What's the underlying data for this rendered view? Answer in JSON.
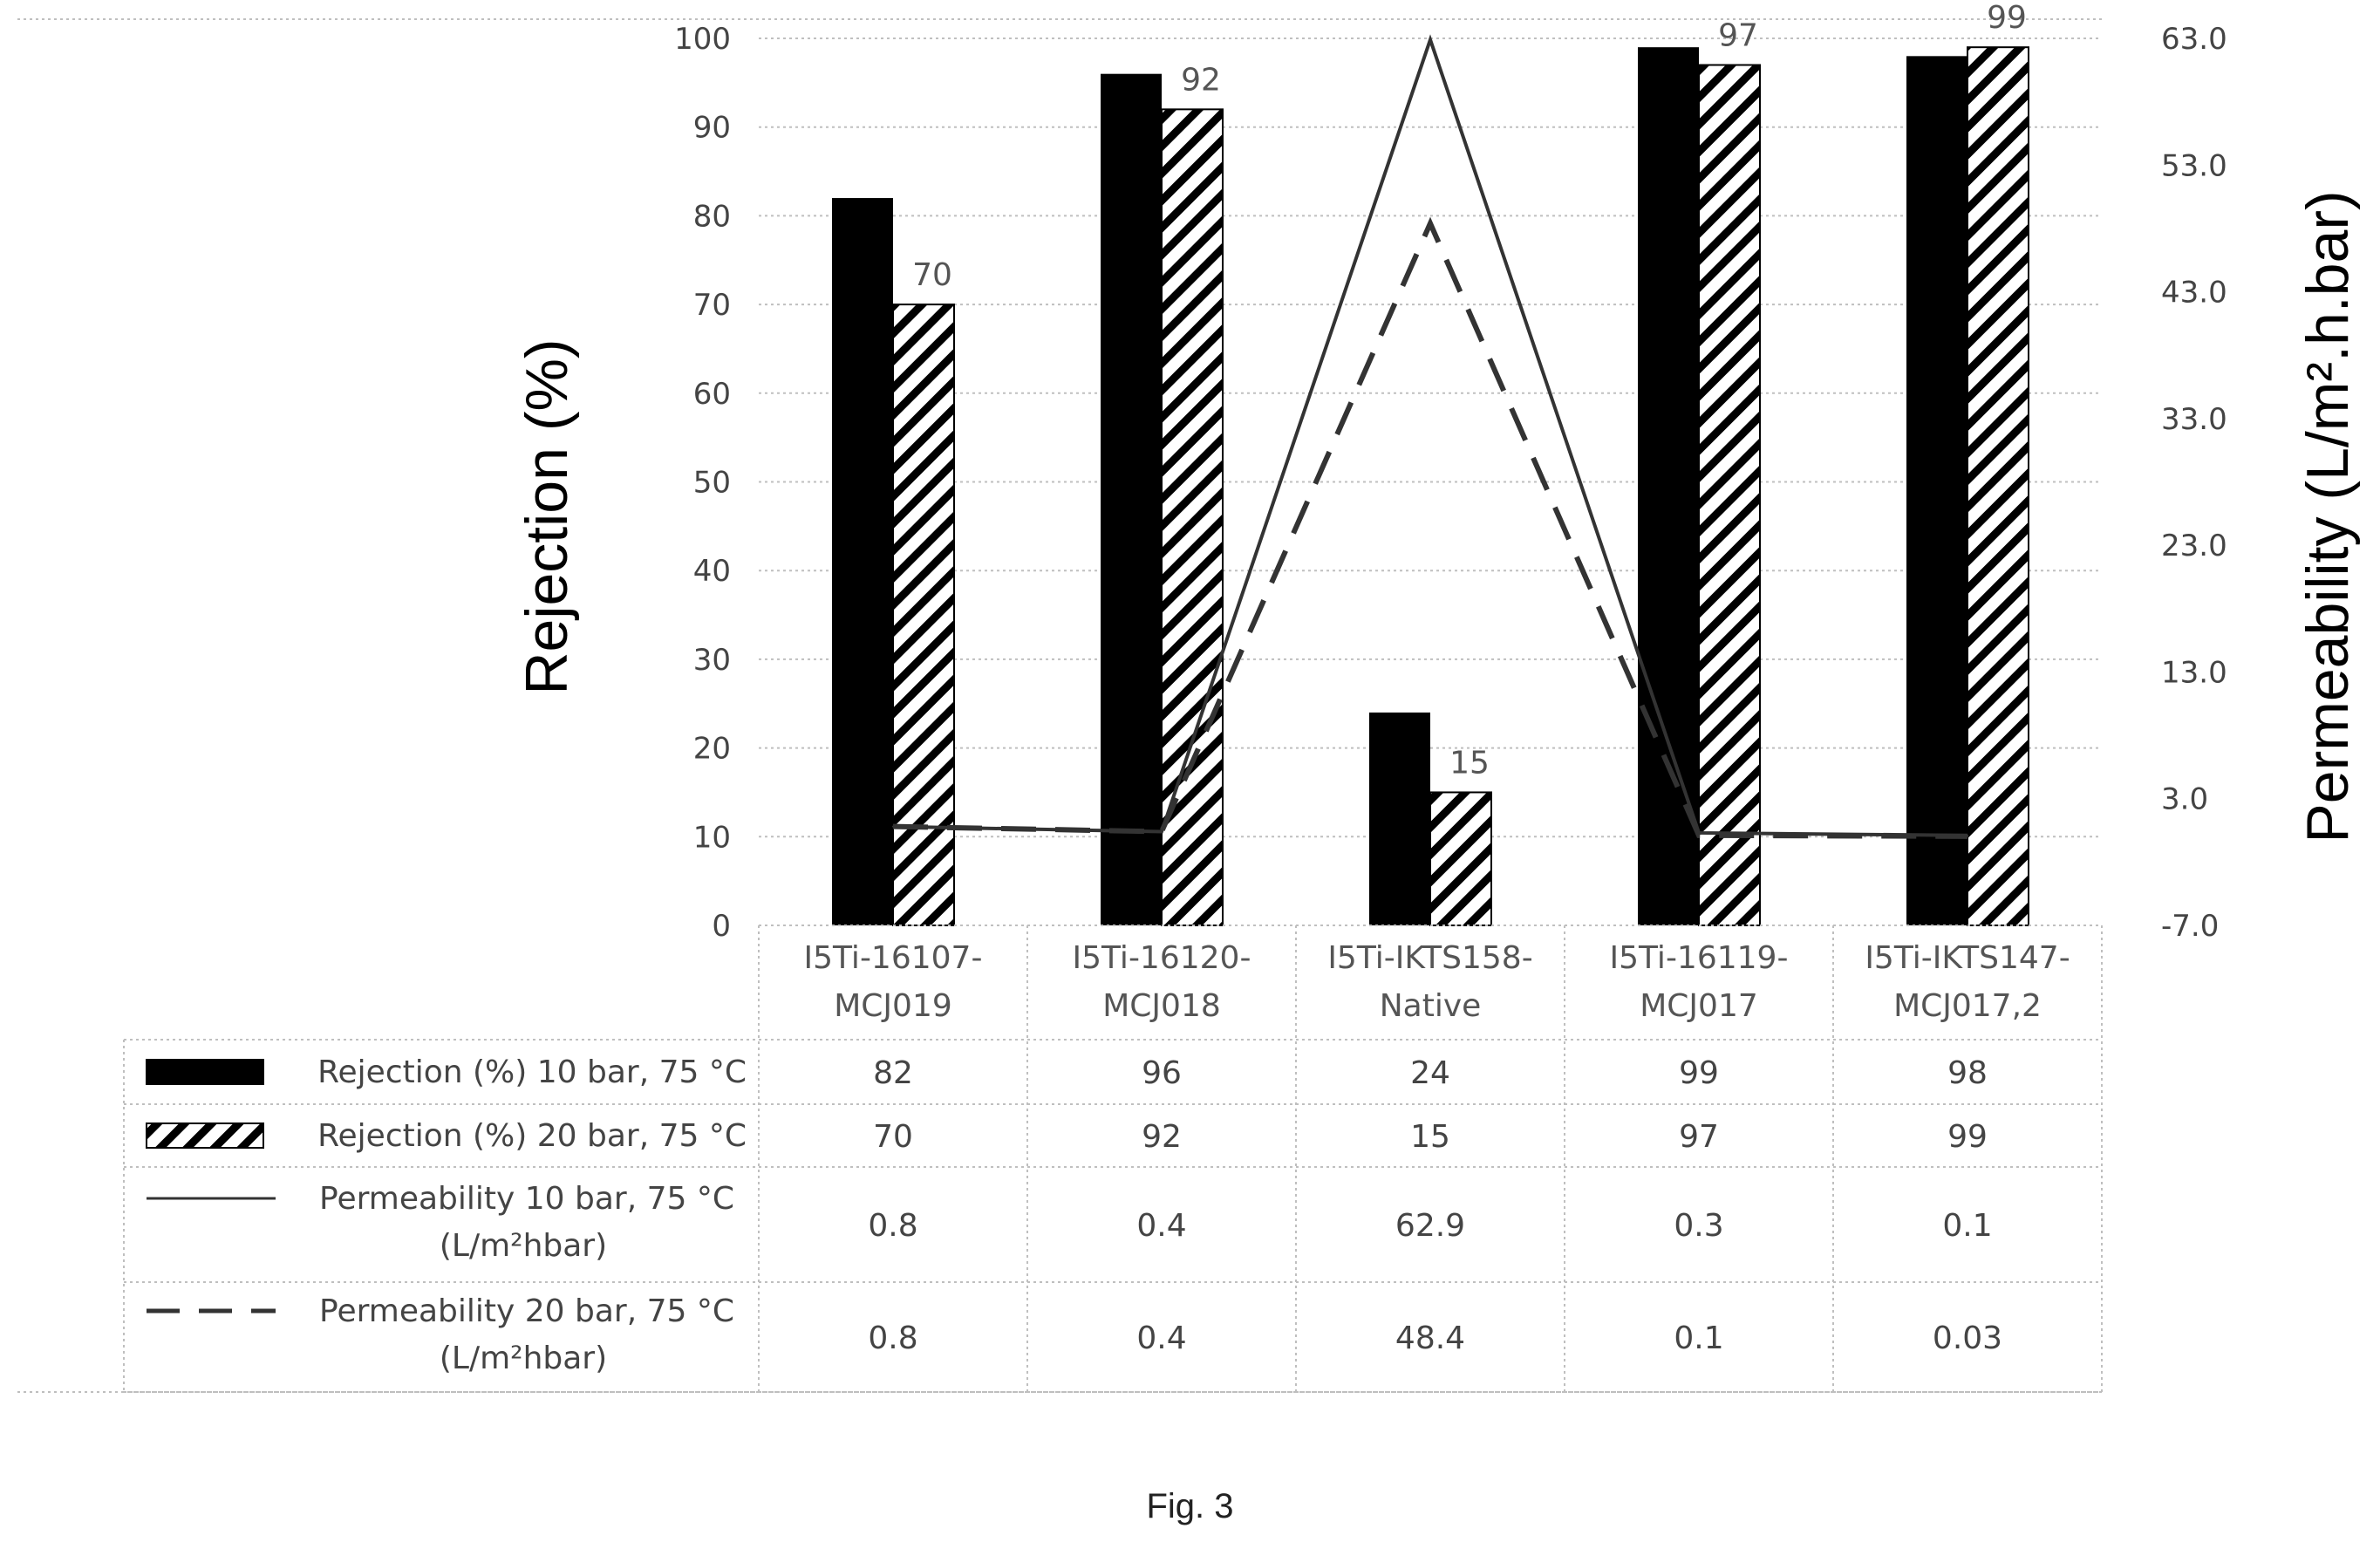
{
  "chart_data": {
    "type": "bar",
    "title": "",
    "categories": [
      "I5Ti-16107-\nMCJ019",
      "I5Ti-16120-\nMCJ018",
      "I5Ti-IKTS158-\nNative",
      "I5Ti-16119-\nMCJ017",
      "I5Ti-IKTS147-\nMCJ017,2"
    ],
    "ylabel": "Rejection (%)",
    "ylim": [
      0,
      100
    ],
    "y_ticks": [
      "0",
      "10",
      "20",
      "30",
      "40",
      "50",
      "60",
      "70",
      "80",
      "90",
      "100"
    ],
    "y2label": "Permeability (L/m².h.bar)",
    "y2lim": [
      -7.0,
      63.0
    ],
    "y2_ticks": [
      "-7.0",
      "3.0",
      "13.0",
      "23.0",
      "33.0",
      "43.0",
      "53.0",
      "63.0"
    ],
    "grid": true,
    "legend": "data-table",
    "series": [
      {
        "name": "Rejection (%) 10 bar, 75 °C",
        "kind": "bar",
        "style": "solid",
        "axis": "left",
        "values": [
          82,
          96,
          24,
          99,
          98
        ],
        "display": [
          "82",
          "96",
          "24",
          "99",
          "98"
        ]
      },
      {
        "name": "Rejection (%) 20 bar, 75 °C",
        "kind": "bar",
        "style": "hatched",
        "axis": "left",
        "values": [
          70,
          92,
          15,
          97,
          99
        ],
        "display": [
          "70",
          "92",
          "15",
          "97",
          "99"
        ],
        "data_labels": [
          "70",
          "92",
          "15",
          "97",
          "99"
        ]
      },
      {
        "name": "Permeability 10 bar, 75 °C\n(L/m²hbar)",
        "kind": "line",
        "style": "solid",
        "axis": "right",
        "values": [
          0.8,
          0.4,
          62.9,
          0.3,
          0.1
        ],
        "display": [
          "0.8",
          "0.4",
          "62.9",
          "0.3",
          "0.1"
        ]
      },
      {
        "name": "Permeability 20 bar, 75 °C\n(L/m²hbar)",
        "kind": "line",
        "style": "dashed",
        "axis": "right",
        "values": [
          0.8,
          0.4,
          48.4,
          0.1,
          0.03
        ],
        "display": [
          "0.8",
          "0.4",
          "48.4",
          "0.1",
          "0.03"
        ]
      }
    ]
  },
  "caption": "Fig. 3",
  "colors": {
    "bar_solid": "#000000",
    "line": "#333333",
    "grid": "#bfbfbf"
  }
}
